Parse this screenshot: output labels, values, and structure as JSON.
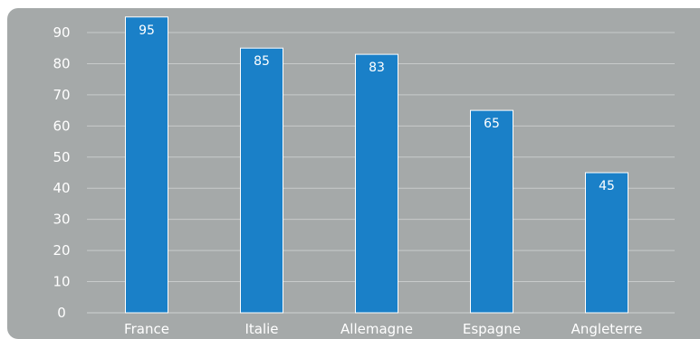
{
  "chart_data": {
    "type": "bar",
    "title": "",
    "xlabel": "",
    "ylabel": "",
    "categories": [
      "France",
      "Italie",
      "Allemagne",
      "Espagne",
      "Angleterre"
    ],
    "values": [
      95,
      85,
      83,
      65,
      45
    ],
    "data_labels": [
      "95",
      "85",
      "83",
      "65",
      "45"
    ],
    "ylim": [
      0,
      95
    ],
    "yticks": [
      0,
      10,
      20,
      30,
      40,
      50,
      60,
      70,
      80,
      90
    ],
    "ytick_labels": [
      "0",
      "10",
      "20",
      "30",
      "40",
      "50",
      "60",
      "70",
      "80",
      "90"
    ],
    "grid": true,
    "legend": "none",
    "colors": {
      "background": "#a5a9a9",
      "bar": "#1a80c8",
      "bar_border": "#ffffff",
      "grid": "#c8cbcb",
      "text": "#ffffff"
    }
  }
}
